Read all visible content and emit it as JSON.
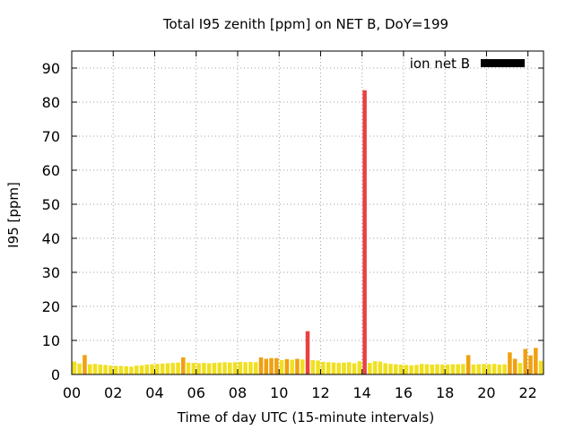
{
  "chart_data": {
    "type": "bar",
    "title": "Total I95 zenith [ppm] on NET B, DoY=199",
    "xlabel": "Time of day UTC (15-minute intervals)",
    "ylabel": "I95 [ppm]",
    "xlim": [
      0,
      22.75
    ],
    "ylim": [
      0,
      95
    ],
    "x_ticks": [
      0,
      2,
      4,
      6,
      8,
      10,
      12,
      14,
      16,
      18,
      20,
      22
    ],
    "x_tick_labels": [
      "00",
      "02",
      "04",
      "06",
      "08",
      "10",
      "12",
      "14",
      "16",
      "18",
      "20",
      "22"
    ],
    "y_ticks": [
      0,
      10,
      20,
      30,
      40,
      50,
      60,
      70,
      80,
      90
    ],
    "grid": true,
    "legend_position": "top-right",
    "interval_hours": 0.25,
    "series": [
      {
        "name": "ion net B",
        "color": "#000000",
        "values": [
          3.8,
          3.2,
          5.7,
          3.0,
          3.1,
          2.9,
          2.8,
          2.6,
          2.5,
          2.5,
          2.4,
          2.3,
          2.6,
          2.7,
          2.9,
          3.0,
          3.1,
          3.2,
          3.3,
          3.4,
          3.5,
          5.0,
          3.5,
          3.4,
          3.3,
          3.4,
          3.3,
          3.4,
          3.5,
          3.6,
          3.5,
          3.6,
          3.7,
          3.6,
          3.7,
          3.6,
          5.0,
          4.6,
          4.8,
          4.8,
          4.2,
          4.5,
          4.3,
          4.6,
          4.4,
          12.7,
          4.2,
          4.1,
          3.7,
          3.6,
          3.5,
          3.4,
          3.5,
          3.6,
          3.3,
          3.9,
          83.5,
          3.4,
          3.9,
          3.8,
          3.3,
          3.1,
          3.0,
          2.9,
          2.8,
          2.7,
          2.8,
          3.1,
          3.0,
          2.9,
          3.0,
          2.9,
          2.9,
          3.0,
          3.0,
          3.1,
          5.7,
          2.9,
          3.0,
          3.1,
          3.0,
          3.1,
          2.9,
          3.0,
          6.5,
          4.6,
          3.4,
          7.5,
          5.6,
          7.8,
          4.0
        ]
      }
    ],
    "bar_colors": {
      "low": "#f0e020",
      "medium": "#f0a010",
      "high": "#e84040"
    }
  }
}
